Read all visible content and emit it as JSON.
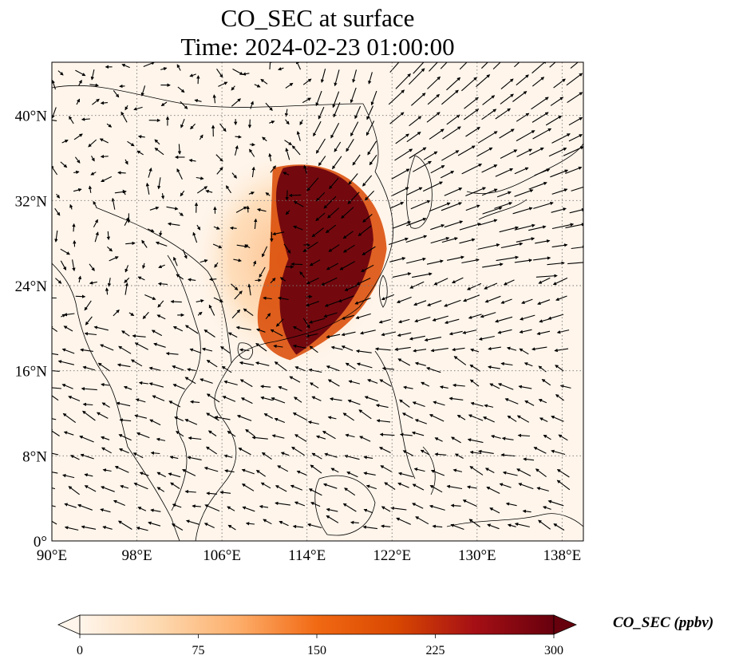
{
  "title": {
    "line1": "CO_SEC at surface",
    "line2": "Time: 2024-02-23 01:00:00"
  },
  "map": {
    "extent": {
      "lon": [
        90,
        140
      ],
      "lat": [
        0,
        45
      ]
    },
    "lon_ticks": [
      {
        "value": 90,
        "label": "90°E"
      },
      {
        "value": 98,
        "label": "98°E"
      },
      {
        "value": 106,
        "label": "106°E"
      },
      {
        "value": 114,
        "label": "114°E"
      },
      {
        "value": 122,
        "label": "122°E"
      },
      {
        "value": 130,
        "label": "130°E"
      },
      {
        "value": 138,
        "label": "138°E"
      }
    ],
    "lat_ticks": [
      {
        "value": 0,
        "label": "0°"
      },
      {
        "value": 8,
        "label": "8°N"
      },
      {
        "value": 16,
        "label": "16°N"
      },
      {
        "value": 24,
        "label": "24°N"
      },
      {
        "value": 32,
        "label": "32°N"
      },
      {
        "value": 40,
        "label": "40°N"
      }
    ],
    "gridlines": "dotted",
    "background_color": "#fff5eb",
    "plume_regions": [
      {
        "name": "core",
        "level": 300,
        "lon": [
          110.5,
          120.5
        ],
        "lat": [
          17.5,
          35.5
        ]
      },
      {
        "name": "inner-halo",
        "level": 200,
        "lon": [
          108.5,
          121.5
        ],
        "lat": [
          17.0,
          36.0
        ]
      },
      {
        "name": "outer-halo",
        "level": 90,
        "lon": [
          103.5,
          121.0
        ],
        "lat": [
          16.5,
          36.5
        ]
      }
    ]
  },
  "colorbar": {
    "label": "CO_SEC (ppbv)",
    "cmap": "OrRd",
    "min": 0,
    "max": 300,
    "extend": "both",
    "ticks": [
      {
        "value": 0,
        "label": "0"
      },
      {
        "value": 75,
        "label": "75"
      },
      {
        "value": 150,
        "label": "150"
      },
      {
        "value": 225,
        "label": "225"
      },
      {
        "value": 300,
        "label": "300"
      }
    ],
    "colors": [
      "#fff5eb",
      "#fdd9b0",
      "#fdae6b",
      "#f16913",
      "#d94801",
      "#a50f15",
      "#67000d"
    ]
  }
}
